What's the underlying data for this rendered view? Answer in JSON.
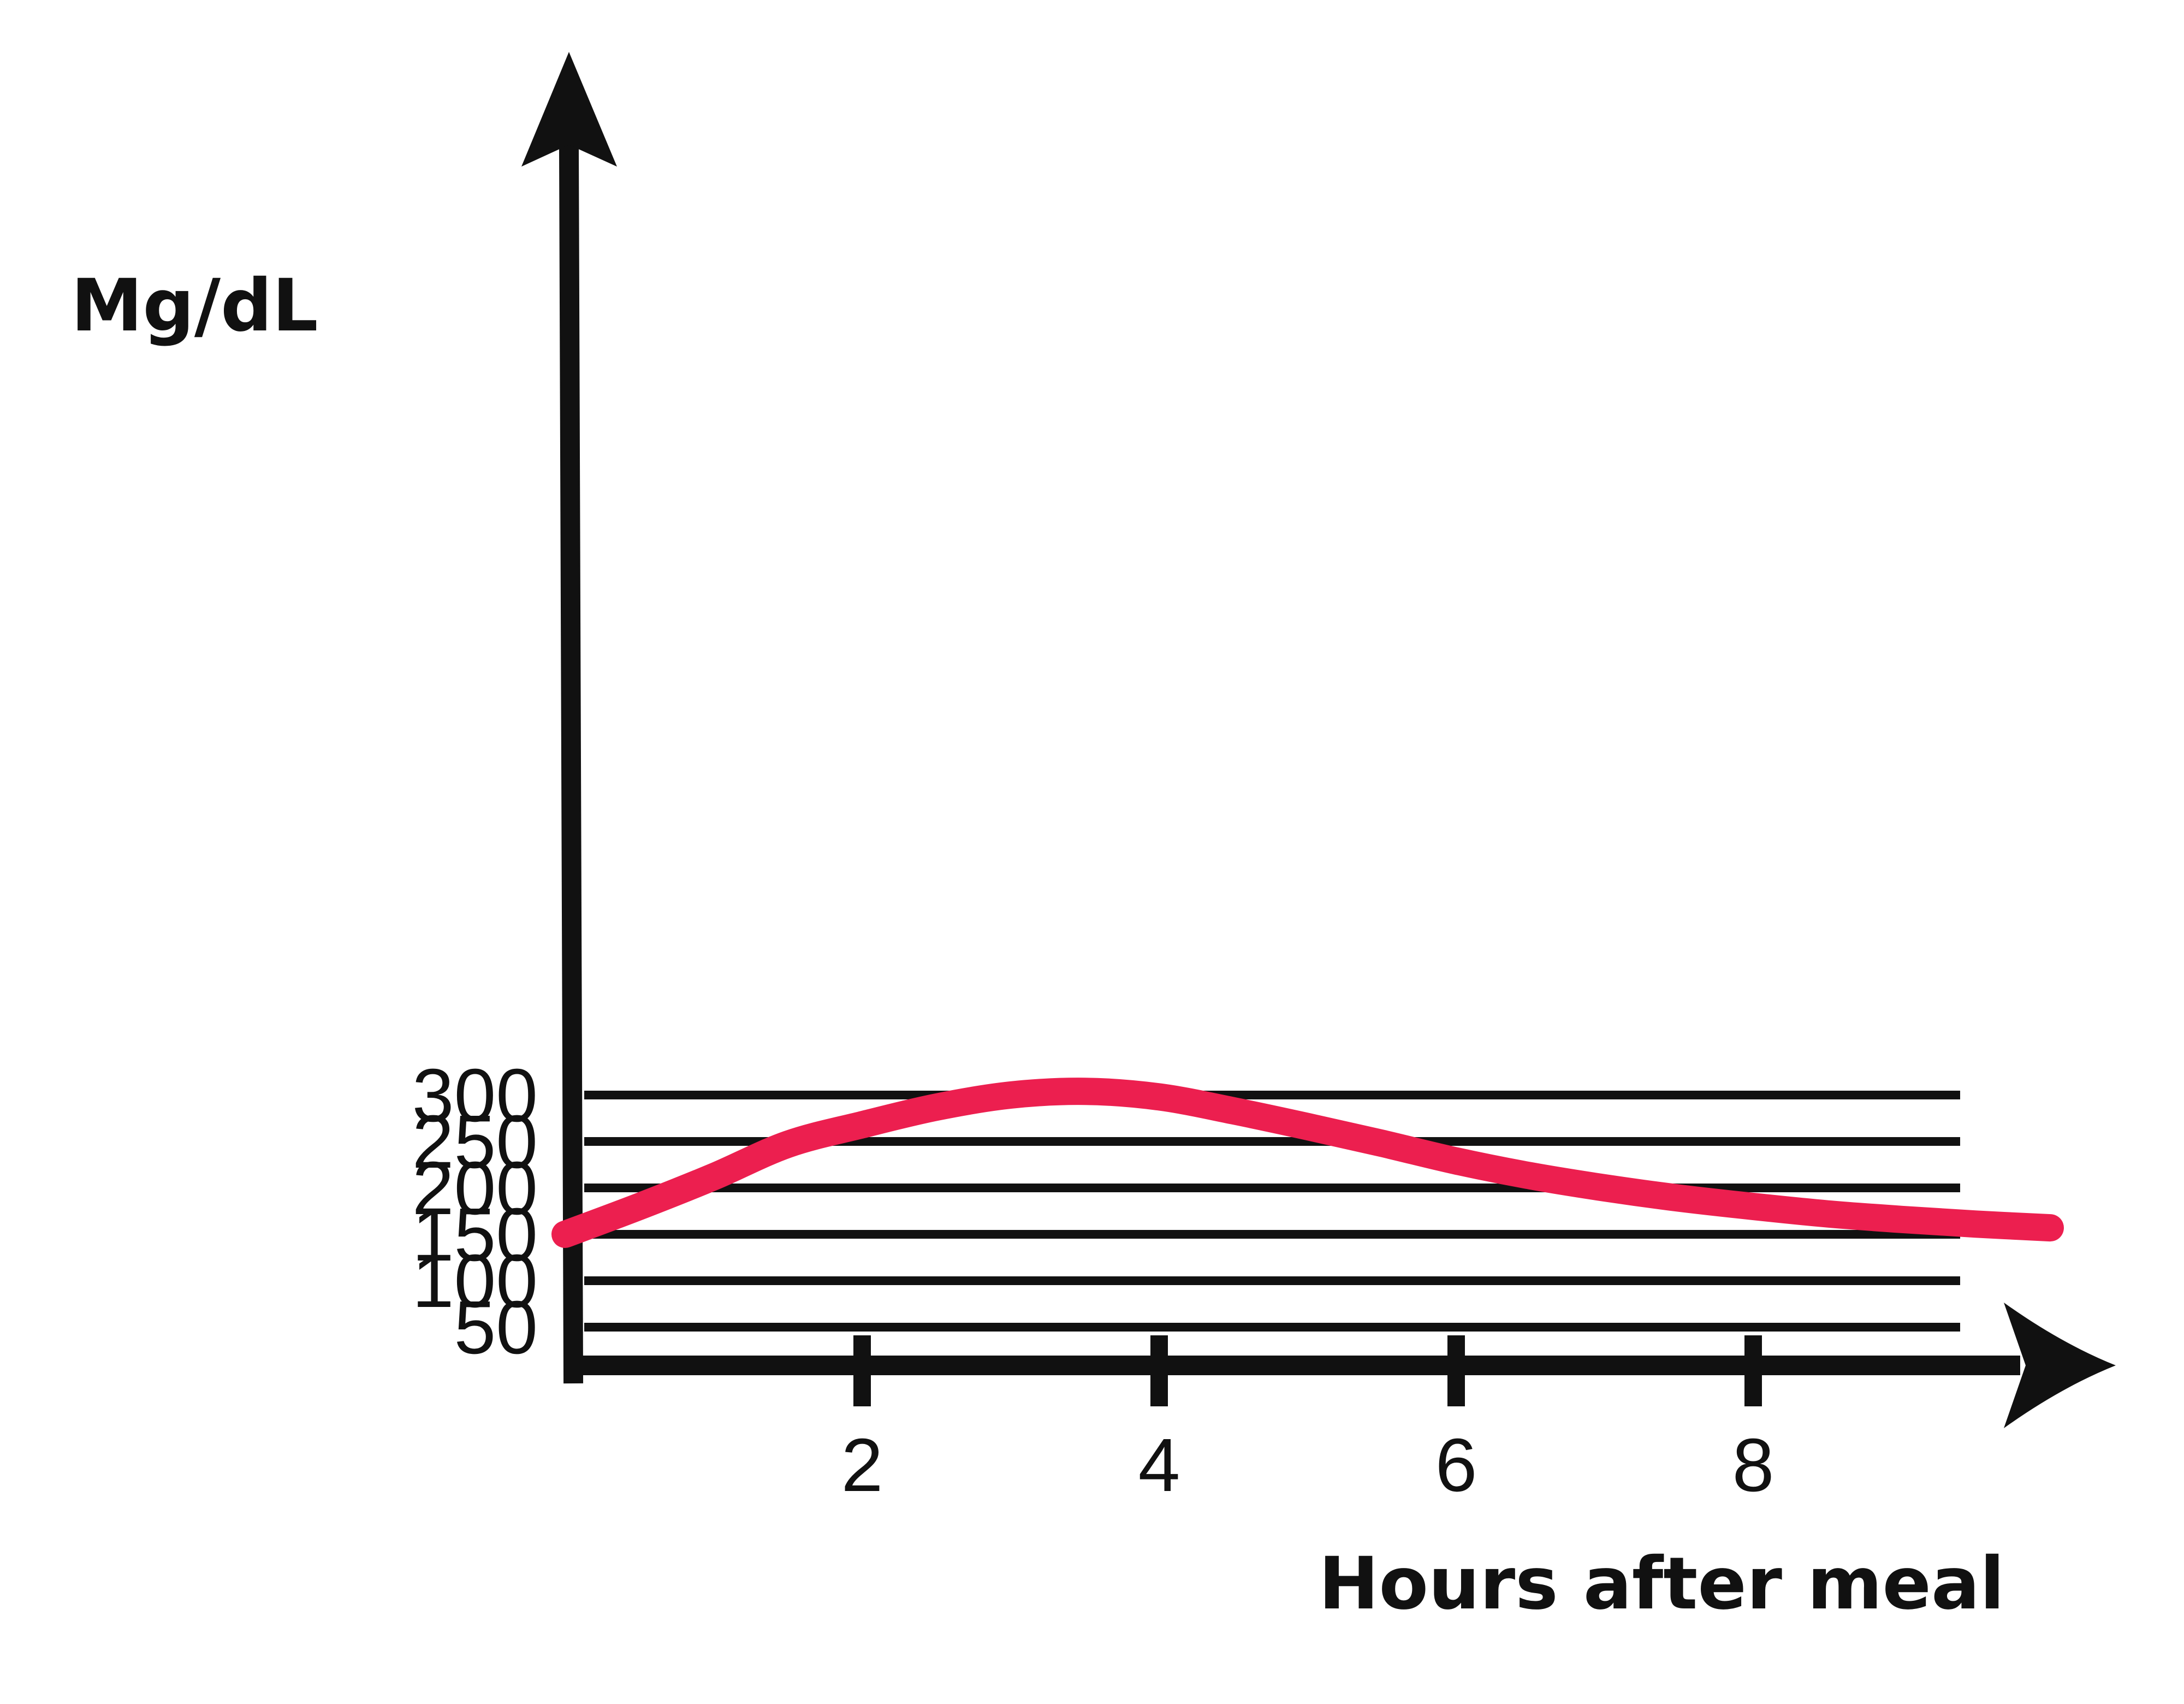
{
  "chart_data": {
    "type": "line",
    "title": "",
    "xlabel": "Hours after meal",
    "ylabel": "Mg/dL",
    "x_ticks": [
      2,
      4,
      6,
      8
    ],
    "y_ticks": [
      50,
      100,
      150,
      200,
      250,
      300
    ],
    "xlim": [
      0,
      10
    ],
    "ylim": [
      0,
      330
    ],
    "grid": true,
    "colors": {
      "line": "#EC1F4F",
      "axis": "#111111",
      "grid": "#111111"
    },
    "series": [
      {
        "x": [
          0,
          0.5,
          1.0,
          1.5,
          2.0,
          2.5,
          3.0,
          3.5,
          4.0,
          4.5,
          5.0,
          5.5,
          6.0,
          6.5,
          7.0,
          7.5,
          8.0,
          8.5,
          9.0,
          9.5,
          10.0
        ],
        "values": [
          150,
          180,
          212,
          247,
          268,
          287,
          300,
          304,
          298,
          283,
          266,
          248,
          229,
          213,
          200,
          189,
          180,
          172,
          166,
          161,
          157
        ]
      }
    ]
  }
}
